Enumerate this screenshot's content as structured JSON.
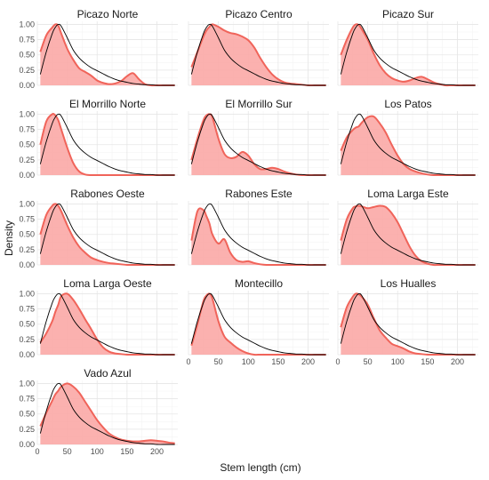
{
  "chart_data": {
    "type": "area",
    "xlabel": "Stem length (cm)",
    "ylabel": "Density",
    "xlim": [
      0,
      235
    ],
    "ylim": [
      0,
      1.05
    ],
    "x_ticks": [
      "0",
      "50",
      "100",
      "150",
      "200"
    ],
    "y_ticks": [
      "0.00",
      "0.25",
      "0.50",
      "0.75",
      "1.00"
    ],
    "grid": true,
    "colors": {
      "fill": "#fba9a6",
      "stroke": "#f0645a",
      "reference": "#000000"
    },
    "x": [
      5,
      15,
      25,
      30,
      35,
      40,
      50,
      60,
      70,
      80,
      90,
      100,
      110,
      120,
      130,
      140,
      150,
      160,
      170,
      180,
      190,
      200,
      210,
      220,
      230
    ],
    "reference": [
      0.18,
      0.55,
      0.85,
      0.95,
      1.0,
      0.97,
      0.78,
      0.58,
      0.45,
      0.36,
      0.29,
      0.24,
      0.19,
      0.14,
      0.1,
      0.07,
      0.05,
      0.03,
      0.02,
      0.01,
      0.01,
      0.0,
      0.0,
      0.0,
      0.0
    ],
    "panels": [
      {
        "name": "Picazo Norte",
        "density": [
          0.55,
          0.82,
          0.95,
          1.0,
          0.98,
          0.85,
          0.6,
          0.42,
          0.28,
          0.22,
          0.16,
          0.08,
          0.04,
          0.02,
          0.03,
          0.07,
          0.15,
          0.2,
          0.1,
          0.02,
          0.0,
          0.0,
          0.0,
          0.0,
          0.0
        ]
      },
      {
        "name": "Picazo Centro",
        "density": [
          0.3,
          0.55,
          0.8,
          0.9,
          0.96,
          1.0,
          0.96,
          0.9,
          0.86,
          0.84,
          0.8,
          0.74,
          0.62,
          0.45,
          0.3,
          0.18,
          0.1,
          0.05,
          0.03,
          0.02,
          0.01,
          0.0,
          0.0,
          0.0,
          0.0
        ]
      },
      {
        "name": "Picazo Sur",
        "density": [
          0.5,
          0.75,
          0.95,
          1.0,
          0.99,
          0.92,
          0.75,
          0.52,
          0.33,
          0.2,
          0.12,
          0.08,
          0.06,
          0.08,
          0.12,
          0.14,
          0.1,
          0.05,
          0.02,
          0.0,
          0.0,
          0.0,
          0.0,
          0.0,
          0.0
        ]
      },
      {
        "name": "El Morrillo Norte",
        "density": [
          0.5,
          0.88,
          1.0,
          0.98,
          0.9,
          0.75,
          0.45,
          0.2,
          0.06,
          0.01,
          0.0,
          0.0,
          0.0,
          0.0,
          0.0,
          0.0,
          0.0,
          0.0,
          0.0,
          0.0,
          0.0,
          0.0,
          0.0,
          0.0,
          0.0
        ]
      },
      {
        "name": "El Morrillo Sur",
        "density": [
          0.25,
          0.6,
          0.9,
          0.98,
          1.0,
          0.95,
          0.6,
          0.35,
          0.28,
          0.3,
          0.38,
          0.32,
          0.18,
          0.1,
          0.1,
          0.12,
          0.1,
          0.06,
          0.03,
          0.01,
          0.0,
          0.0,
          0.0,
          0.0,
          0.0
        ]
      },
      {
        "name": "Los Patos",
        "density": [
          0.4,
          0.62,
          0.74,
          0.78,
          0.8,
          0.86,
          0.95,
          0.96,
          0.85,
          0.7,
          0.5,
          0.32,
          0.18,
          0.1,
          0.06,
          0.03,
          0.01,
          0.0,
          0.0,
          0.0,
          0.0,
          0.0,
          0.0,
          0.0,
          0.0
        ]
      },
      {
        "name": "Rabones Oeste",
        "density": [
          0.5,
          0.82,
          0.97,
          1.0,
          0.97,
          0.88,
          0.65,
          0.45,
          0.3,
          0.2,
          0.12,
          0.08,
          0.05,
          0.03,
          0.02,
          0.01,
          0.0,
          0.0,
          0.0,
          0.0,
          0.0,
          0.0,
          0.0,
          0.0,
          0.0
        ]
      },
      {
        "name": "Rabones Este",
        "density": [
          0.4,
          0.88,
          0.9,
          0.8,
          0.68,
          0.5,
          0.35,
          0.42,
          0.2,
          0.08,
          0.05,
          0.06,
          0.03,
          0.01,
          0.0,
          0.0,
          0.0,
          0.0,
          0.0,
          0.0,
          0.0,
          0.0,
          0.0,
          0.0,
          0.0
        ]
      },
      {
        "name": "Loma Larga Este",
        "density": [
          0.4,
          0.75,
          0.93,
          0.96,
          0.97,
          0.96,
          0.93,
          0.95,
          0.97,
          0.95,
          0.85,
          0.7,
          0.5,
          0.3,
          0.15,
          0.06,
          0.02,
          0.0,
          0.0,
          0.0,
          0.0,
          0.0,
          0.0,
          0.0,
          0.0
        ]
      },
      {
        "name": "Loma Larga Oeste",
        "density": [
          0.2,
          0.35,
          0.55,
          0.7,
          0.82,
          0.96,
          1.0,
          0.9,
          0.75,
          0.58,
          0.42,
          0.25,
          0.12,
          0.05,
          0.02,
          0.01,
          0.0,
          0.0,
          0.0,
          0.0,
          0.0,
          0.0,
          0.0,
          0.0,
          0.0
        ]
      },
      {
        "name": "Montecillo",
        "density": [
          0.15,
          0.5,
          0.88,
          0.97,
          1.0,
          0.92,
          0.55,
          0.3,
          0.2,
          0.12,
          0.06,
          0.02,
          0.0,
          0.0,
          0.0,
          0.0,
          0.0,
          0.0,
          0.0,
          0.0,
          0.0,
          0.0,
          0.0,
          0.0,
          0.0
        ]
      },
      {
        "name": "Los Hualles",
        "density": [
          0.45,
          0.78,
          0.95,
          1.0,
          0.99,
          0.95,
          0.82,
          0.6,
          0.4,
          0.28,
          0.18,
          0.14,
          0.1,
          0.05,
          0.02,
          0.01,
          0.0,
          0.0,
          0.0,
          0.0,
          0.0,
          0.0,
          0.0,
          0.0,
          0.0
        ]
      },
      {
        "name": "Vado Azul",
        "density": [
          0.3,
          0.52,
          0.72,
          0.82,
          0.88,
          0.95,
          1.0,
          0.95,
          0.85,
          0.7,
          0.55,
          0.4,
          0.28,
          0.18,
          0.12,
          0.08,
          0.06,
          0.05,
          0.05,
          0.06,
          0.07,
          0.06,
          0.05,
          0.03,
          0.02
        ]
      }
    ]
  }
}
